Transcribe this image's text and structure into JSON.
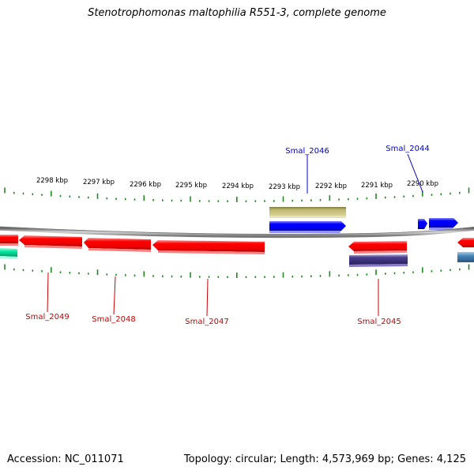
{
  "title": "Stenotrophomonas maltophilia R551-3, complete genome",
  "footer": {
    "accession": "Accession: NC_011071",
    "topology": "Topology: circular; Length: 4,573,969 bp; Genes: 4,125"
  },
  "kbp_labels": [
    "2298 kbp",
    "2297 kbp",
    "2296 kbp",
    "2295 kbp",
    "2294 kbp",
    "2293 kbp",
    "2292 kbp",
    "2291 kbp",
    "2290 kbp"
  ],
  "genes_forward": [
    {
      "name": "Smal_2046",
      "color": "#0000ee"
    },
    {
      "name": "Smal_2044",
      "color": "#0000cc"
    }
  ],
  "genes_reverse": [
    {
      "name": "Smal_2049",
      "color": "#cc0000"
    },
    {
      "name": "Smal_2048",
      "color": "#cc0000"
    },
    {
      "name": "Smal_2047",
      "color": "#cc0000"
    },
    {
      "name": "Smal_2045",
      "color": "#cc0000"
    }
  ],
  "colors": {
    "backbone": "#888888",
    "tick": "#228822",
    "forward_gene": "#0000ff",
    "reverse_gene": "#ff0000",
    "khaki_feature": "#bdb76b",
    "navy_feature": "#483d8b",
    "teal_feature": "#00e6a0",
    "steel_feature": "#4682b4"
  }
}
